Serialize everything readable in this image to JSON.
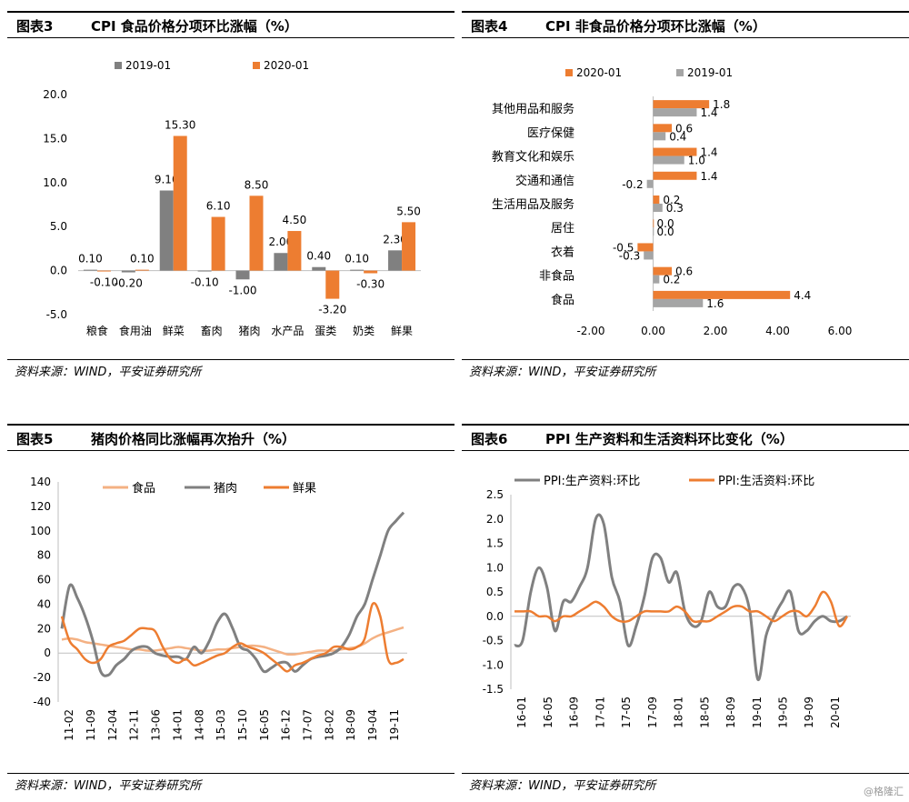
{
  "panels": [
    {
      "num": "图表3",
      "title": "CPI 食品价格分项环比涨幅（%）",
      "source": "资料来源：WIND，平安证券研究所"
    },
    {
      "num": "图表4",
      "title": "CPI 非食品价格分项环比涨幅（%）",
      "source": "资料来源：WIND，平安证券研究所"
    },
    {
      "num": "图表5",
      "title": "猪肉价格同比涨幅再次抬升（%）",
      "source": "资料来源：WIND，平安证券研究所"
    },
    {
      "num": "图表6",
      "title": "PPI 生产资料和生活资料环比变化（%）",
      "source": "资料来源：WIND，平安证券研究所"
    }
  ],
  "watermark": "@格隆汇",
  "colors": {
    "orange": "#ED7D31",
    "gray": "#808080",
    "lightgray": "#A5A5A5",
    "lightorange": "#F4B183"
  },
  "chart_data": [
    {
      "type": "bar",
      "title": "CPI 食品价格分项环比涨幅（%）",
      "categories": [
        "粮食",
        "食用油",
        "鲜菜",
        "畜肉",
        "猪肉",
        "水产品",
        "蛋类",
        "奶类",
        "鲜果"
      ],
      "series": [
        {
          "name": "2019-01",
          "values": [
            0.1,
            -0.2,
            9.1,
            -0.1,
            -1.0,
            2.0,
            0.4,
            0.1,
            2.3
          ],
          "labels": [
            "0.10",
            "-0.20",
            "9.10",
            "-0.10",
            "-1.00",
            "2.00",
            "0.40",
            "0.10",
            "2.30"
          ]
        },
        {
          "name": "2020-01",
          "values": [
            -0.1,
            0.1,
            15.3,
            6.1,
            8.5,
            4.5,
            -3.2,
            -0.3,
            5.5
          ],
          "labels": [
            "-0.10",
            "0.10",
            "15.30",
            "6.10",
            "8.50",
            "4.50",
            "-3.20",
            "-0.30",
            "5.50"
          ]
        }
      ],
      "ylim": [
        -5,
        20
      ],
      "yticks": [
        "-5.0",
        "0.0",
        "5.0",
        "10.0",
        "15.0",
        "20.0"
      ],
      "legend": "top"
    },
    {
      "type": "bar",
      "orientation": "horizontal",
      "title": "CPI 非食品价格分项环比涨幅（%）",
      "categories": [
        "其他用品和服务",
        "医疗保健",
        "教育文化和娱乐",
        "交通和通信",
        "生活用品及服务",
        "居住",
        "衣着",
        "非食品",
        "食品"
      ],
      "series": [
        {
          "name": "2020-01",
          "values": [
            1.8,
            0.6,
            1.4,
            1.4,
            0.2,
            0.0,
            -0.5,
            0.6,
            4.4
          ],
          "labels": [
            "1.8",
            "0.6",
            "1.4",
            "1.4",
            "0.2",
            "0.0",
            "-0.5",
            "0.6",
            "4.4"
          ]
        },
        {
          "name": "2019-01",
          "values": [
            1.4,
            0.4,
            1.0,
            -0.2,
            0.3,
            0.0,
            -0.3,
            0.2,
            1.6
          ],
          "labels": [
            "1.4",
            "0.4",
            "1.0",
            "-0.2",
            "0.3",
            "0.0",
            "-0.3",
            "0.2",
            "1.6"
          ]
        }
      ],
      "xlim": [
        -2,
        6
      ],
      "xticks": [
        "-2.00",
        "0.00",
        "2.00",
        "4.00",
        "6.00"
      ],
      "legend": "top"
    },
    {
      "type": "line",
      "title": "猪肉价格同比涨幅再次抬升（%）",
      "xtick_labels": [
        "11-02",
        "11-09",
        "12-04",
        "12-11",
        "13-06",
        "14-01",
        "14-08",
        "15-03",
        "15-10",
        "16-05",
        "16-12",
        "17-07",
        "18-02",
        "18-09",
        "19-04",
        "19-11"
      ],
      "ylim": [
        -40,
        140
      ],
      "yticks": [
        "-40",
        "-20",
        "0",
        "20",
        "40",
        "60",
        "80",
        "100",
        "120",
        "140"
      ],
      "series": [
        {
          "name": "食品",
          "values": [
            11,
            12,
            11,
            9,
            8,
            7,
            6,
            5,
            4,
            3,
            3,
            2,
            2,
            3,
            4,
            5,
            4,
            3,
            2,
            2,
            3,
            3,
            4,
            5,
            6,
            6,
            5,
            3,
            1,
            -1,
            -1,
            0,
            1,
            2,
            2,
            2,
            3,
            4,
            5,
            8,
            12,
            15,
            17,
            19,
            21
          ]
        },
        {
          "name": "猪肉",
          "values": [
            20,
            55,
            45,
            30,
            10,
            -15,
            -18,
            -10,
            -5,
            2,
            5,
            5,
            0,
            -2,
            -3,
            -3,
            -5,
            5,
            0,
            10,
            25,
            32,
            20,
            5,
            2,
            -5,
            -15,
            -12,
            -8,
            -8,
            -15,
            -10,
            -5,
            -3,
            -2,
            0,
            5,
            15,
            30,
            40,
            60,
            80,
            100,
            108,
            115
          ]
        },
        {
          "name": "鲜果",
          "values": [
            30,
            10,
            3,
            -5,
            -8,
            -5,
            5,
            8,
            10,
            15,
            20,
            20,
            18,
            5,
            -5,
            -8,
            -5,
            -10,
            -8,
            -5,
            -2,
            0,
            5,
            8,
            5,
            3,
            0,
            -5,
            -10,
            -15,
            -10,
            -8,
            -5,
            -2,
            0,
            5,
            5,
            3,
            5,
            12,
            40,
            30,
            -5,
            -8,
            -5
          ]
        }
      ],
      "legend": "top"
    },
    {
      "type": "line",
      "title": "PPI 生产资料和生活资料环比变化（%）",
      "xtick_labels": [
        "16-01",
        "16-05",
        "16-09",
        "17-01",
        "17-05",
        "17-09",
        "18-01",
        "18-05",
        "18-09",
        "19-01",
        "19-05",
        "19-09",
        "20-01"
      ],
      "ylim": [
        -1.5,
        2.5
      ],
      "yticks": [
        "-1.5",
        "-1.0",
        "-0.5",
        "0.0",
        "0.5",
        "1.0",
        "1.5",
        "2.0",
        "2.5"
      ],
      "series": [
        {
          "name": "PPI:生产资料:环比",
          "values": [
            -0.6,
            -0.5,
            0.5,
            1.0,
            0.6,
            -0.3,
            0.3,
            0.3,
            0.6,
            1.0,
            2.0,
            1.9,
            0.8,
            0.3,
            -0.6,
            -0.2,
            0.4,
            1.2,
            1.2,
            0.7,
            0.9,
            0.1,
            -0.2,
            -0.1,
            0.5,
            0.2,
            0.2,
            0.6,
            0.6,
            0.1,
            -1.3,
            -0.4,
            0.0,
            0.3,
            0.5,
            -0.3,
            -0.3,
            -0.1,
            0.0,
            -0.1,
            -0.1,
            0.0
          ]
        },
        {
          "name": "PPI:生活资料:环比",
          "values": [
            0.1,
            0.1,
            0.1,
            0.0,
            0.0,
            -0.1,
            0.0,
            0.0,
            0.1,
            0.2,
            0.3,
            0.2,
            0.0,
            -0.1,
            -0.1,
            0.0,
            0.1,
            0.1,
            0.1,
            0.1,
            0.2,
            0.1,
            -0.1,
            -0.1,
            -0.1,
            0.0,
            0.1,
            0.2,
            0.2,
            0.1,
            0.1,
            0.0,
            -0.1,
            0.0,
            0.1,
            0.1,
            0.0,
            0.2,
            0.5,
            0.3,
            -0.2,
            0.0
          ]
        }
      ],
      "legend": "top"
    }
  ]
}
